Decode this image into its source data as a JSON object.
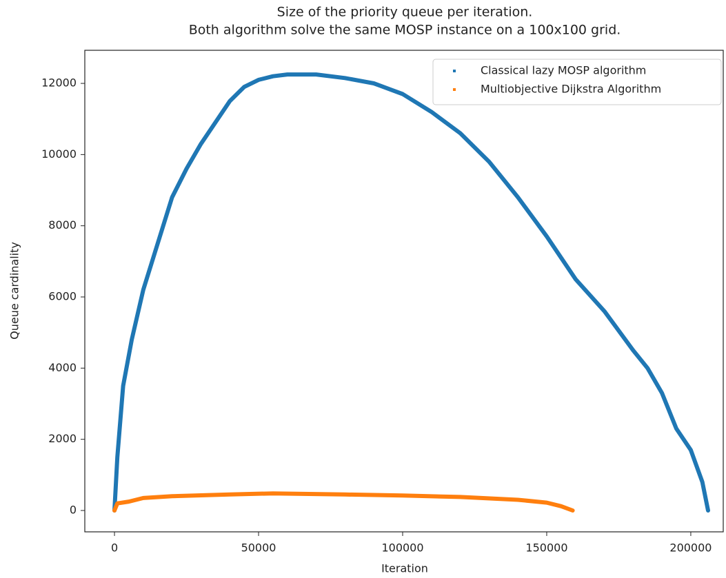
{
  "chart_data": {
    "type": "scatter",
    "title": [
      "Size of the priority queue per iteration.",
      "Both algorithm solve the same MOSP instance on a 100x100 grid."
    ],
    "xlabel": "Iteration",
    "ylabel": "Queue cardinality",
    "xlim": [
      -10300,
      211500
    ],
    "ylim": [
      -600,
      12930
    ],
    "xticks": [
      0,
      50000,
      100000,
      150000,
      200000
    ],
    "yticks": [
      0,
      2000,
      4000,
      6000,
      8000,
      10000,
      12000
    ],
    "legend": "upper right",
    "series": [
      {
        "name": "Classical lazy MOSP algorithm",
        "color": "#1f77b4",
        "x": [
          0,
          1000,
          3000,
          6000,
          10000,
          15000,
          20000,
          25000,
          30000,
          35000,
          40000,
          45000,
          50000,
          55000,
          60000,
          70000,
          80000,
          90000,
          100000,
          110000,
          120000,
          130000,
          140000,
          150000,
          160000,
          170000,
          180000,
          185000,
          190000,
          195000,
          200000,
          204000,
          206000
        ],
        "values": [
          0,
          1500,
          3500,
          4800,
          6200,
          7500,
          8800,
          9600,
          10300,
          10900,
          11500,
          11900,
          12100,
          12200,
          12250,
          12250,
          12150,
          12000,
          11700,
          11200,
          10600,
          9800,
          8800,
          7700,
          6500,
          5600,
          4500,
          4000,
          3300,
          2300,
          1700,
          800,
          0
        ]
      },
      {
        "name": "Multiobjective Dijkstra Algorithm",
        "color": "#ff7f0e",
        "x": [
          0,
          1000,
          5000,
          10000,
          20000,
          40000,
          55000,
          80000,
          100000,
          120000,
          140000,
          150000,
          155000,
          159000
        ],
        "values": [
          0,
          200,
          250,
          350,
          400,
          450,
          480,
          450,
          420,
          380,
          300,
          220,
          120,
          0
        ]
      }
    ]
  }
}
